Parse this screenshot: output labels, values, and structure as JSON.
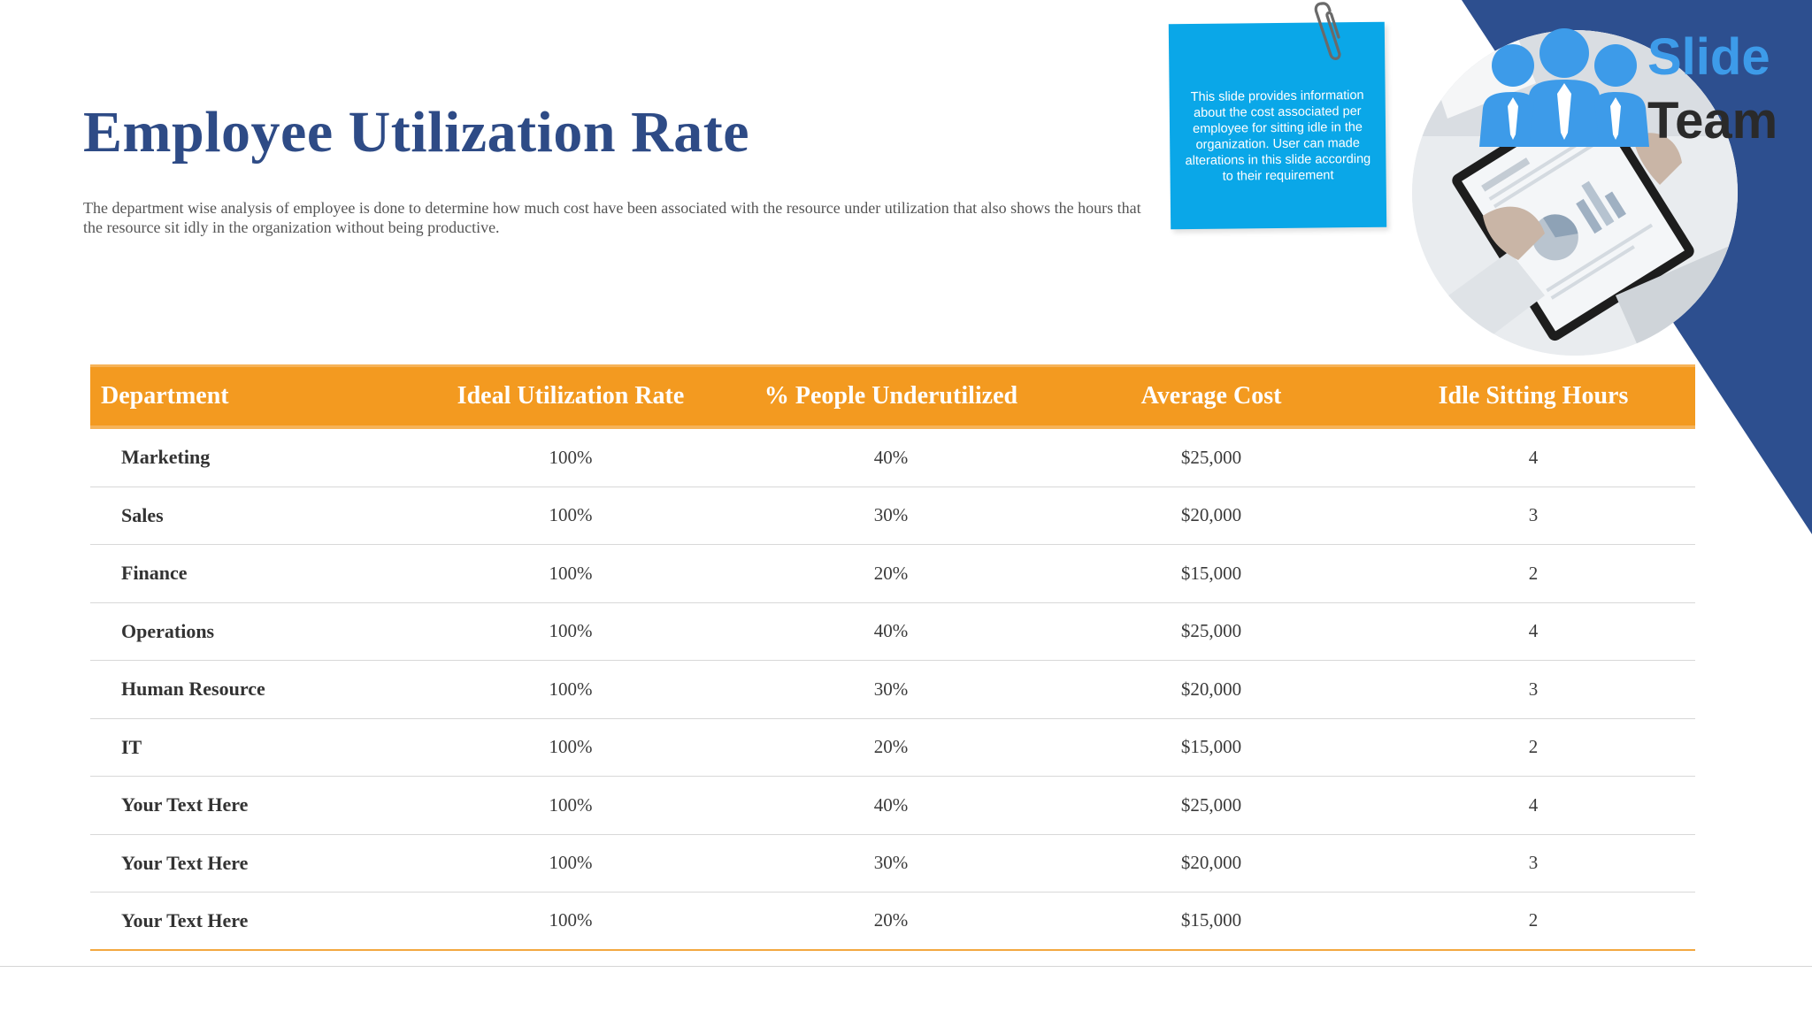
{
  "slide": {
    "title": "Employee Utilization Rate",
    "subtitle": "The  department wise analysis of employee is done to determine how much cost have been associated with the resource under utilization that also shows the hours that the resource sit idly in the organization without being productive.",
    "note_text": "This slide provides information about the cost associated per employee for sitting idle in the organization. User can made alterations in this slide according to their requirement"
  },
  "logo": {
    "word_1": "Slide",
    "word_2": "Team"
  },
  "table": {
    "headers": [
      "Department",
      "Ideal Utilization Rate",
      "% People Underutilized",
      "Average Cost",
      "Idle Sitting Hours"
    ],
    "rows": [
      [
        "Marketing",
        "100%",
        "40%",
        "$25,000",
        "4"
      ],
      [
        "Sales",
        "100%",
        "30%",
        "$20,000",
        "3"
      ],
      [
        "Finance",
        "100%",
        "20%",
        "$15,000",
        "2"
      ],
      [
        "Operations",
        "100%",
        "40%",
        "$25,000",
        "4"
      ],
      [
        "Human Resource",
        "100%",
        "30%",
        "$20,000",
        "3"
      ],
      [
        "IT",
        "100%",
        "20%",
        "$15,000",
        "2"
      ],
      [
        "Your Text Here",
        "100%",
        "40%",
        "$25,000",
        "4"
      ],
      [
        "Your Text Here",
        "100%",
        "30%",
        "$20,000",
        "3"
      ],
      [
        "Your Text Here",
        "100%",
        "20%",
        "$15,000",
        "2"
      ]
    ]
  },
  "colors": {
    "title": "#2e4b86",
    "header_bg": "#f39a20",
    "accent_triangle": "#2d4f8f",
    "note_bg": "#0aa7e8",
    "logo_blue": "#3d9be9"
  },
  "icons": {
    "paperclip": "paperclip-icon",
    "logo": "people-group-icon"
  }
}
